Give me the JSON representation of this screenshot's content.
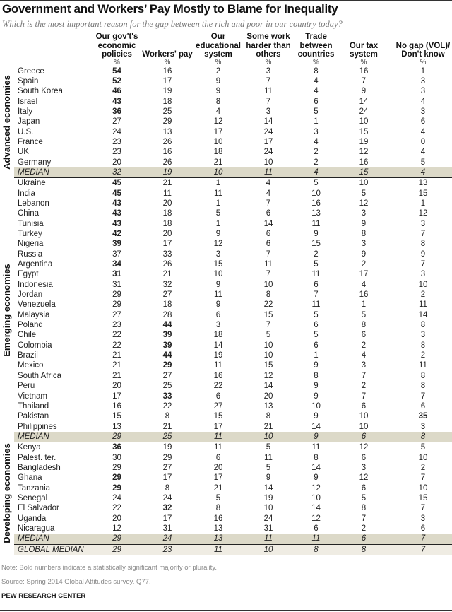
{
  "title": "Government and Workers’ Pay Mostly to Blame for Inequality",
  "subtitle": "Which is the most important reason for the gap between the rich and poor in our country today?",
  "columns": [
    "Our gov't's economic policies",
    "Workers' pay",
    "Our educational system",
    "Some work harder than others",
    "Trade between countries",
    "Our tax system",
    "No gap (VOL)/ Don't know"
  ],
  "unit": "%",
  "groups": [
    {
      "label": "Advanced economies",
      "rows": [
        {
          "name": "Greece",
          "values": [
            54,
            16,
            2,
            3,
            8,
            16,
            1
          ],
          "bold": [
            0
          ]
        },
        {
          "name": "Spain",
          "values": [
            52,
            17,
            9,
            7,
            4,
            7,
            3
          ],
          "bold": [
            0
          ]
        },
        {
          "name": "South Korea",
          "values": [
            46,
            19,
            9,
            11,
            4,
            9,
            3
          ],
          "bold": [
            0
          ]
        },
        {
          "name": "Israel",
          "values": [
            43,
            18,
            8,
            7,
            6,
            14,
            4
          ],
          "bold": [
            0
          ]
        },
        {
          "name": "Italy",
          "values": [
            36,
            25,
            4,
            3,
            5,
            24,
            3
          ],
          "bold": [
            0
          ]
        },
        {
          "name": "Japan",
          "values": [
            27,
            29,
            12,
            14,
            1,
            10,
            6
          ],
          "bold": []
        },
        {
          "name": "U.S.",
          "values": [
            24,
            13,
            17,
            24,
            3,
            15,
            4
          ],
          "bold": []
        },
        {
          "name": "France",
          "values": [
            23,
            26,
            10,
            17,
            4,
            19,
            0
          ],
          "bold": []
        },
        {
          "name": "UK",
          "values": [
            23,
            16,
            18,
            24,
            2,
            12,
            4
          ],
          "bold": []
        },
        {
          "name": "Germany",
          "values": [
            20,
            26,
            21,
            10,
            2,
            16,
            5
          ],
          "bold": []
        }
      ],
      "median": {
        "name": "MEDIAN",
        "values": [
          32,
          19,
          10,
          11,
          4,
          15,
          4
        ]
      }
    },
    {
      "label": "Emerging economies",
      "rows": [
        {
          "name": "Ukraine",
          "values": [
            45,
            21,
            1,
            4,
            5,
            10,
            13
          ],
          "bold": [
            0
          ]
        },
        {
          "name": "India",
          "values": [
            45,
            11,
            11,
            4,
            10,
            5,
            15
          ],
          "bold": [
            0
          ]
        },
        {
          "name": "Lebanon",
          "values": [
            43,
            20,
            1,
            7,
            16,
            12,
            1
          ],
          "bold": [
            0
          ]
        },
        {
          "name": "China",
          "values": [
            43,
            18,
            5,
            6,
            13,
            3,
            12
          ],
          "bold": [
            0
          ]
        },
        {
          "name": "Tunisia",
          "values": [
            43,
            18,
            1,
            14,
            11,
            9,
            3
          ],
          "bold": [
            0
          ]
        },
        {
          "name": "Turkey",
          "values": [
            42,
            20,
            9,
            6,
            9,
            8,
            7
          ],
          "bold": [
            0
          ]
        },
        {
          "name": "Nigeria",
          "values": [
            39,
            17,
            12,
            6,
            15,
            3,
            8
          ],
          "bold": [
            0
          ]
        },
        {
          "name": "Russia",
          "values": [
            37,
            33,
            3,
            7,
            2,
            9,
            9
          ],
          "bold": []
        },
        {
          "name": "Argentina",
          "values": [
            34,
            26,
            15,
            11,
            5,
            2,
            7
          ],
          "bold": [
            0
          ]
        },
        {
          "name": "Egypt",
          "values": [
            31,
            21,
            10,
            7,
            11,
            17,
            3
          ],
          "bold": [
            0
          ]
        },
        {
          "name": "Indonesia",
          "values": [
            31,
            32,
            9,
            10,
            6,
            4,
            10
          ],
          "bold": []
        },
        {
          "name": "Jordan",
          "values": [
            29,
            27,
            11,
            8,
            7,
            16,
            2
          ],
          "bold": []
        },
        {
          "name": "Venezuela",
          "values": [
            29,
            18,
            9,
            22,
            11,
            1,
            11
          ],
          "bold": []
        },
        {
          "name": "Malaysia",
          "values": [
            27,
            28,
            6,
            15,
            5,
            5,
            14
          ],
          "bold": []
        },
        {
          "name": "Poland",
          "values": [
            23,
            44,
            3,
            7,
            6,
            8,
            8
          ],
          "bold": [
            1
          ]
        },
        {
          "name": "Chile",
          "values": [
            22,
            39,
            18,
            5,
            5,
            6,
            3
          ],
          "bold": [
            1
          ]
        },
        {
          "name": "Colombia",
          "values": [
            22,
            39,
            14,
            10,
            6,
            2,
            8
          ],
          "bold": [
            1
          ]
        },
        {
          "name": "Brazil",
          "values": [
            21,
            44,
            19,
            10,
            1,
            4,
            2
          ],
          "bold": [
            1
          ]
        },
        {
          "name": "Mexico",
          "values": [
            21,
            29,
            11,
            15,
            9,
            3,
            11
          ],
          "bold": [
            1
          ]
        },
        {
          "name": "South Africa",
          "values": [
            21,
            27,
            16,
            12,
            8,
            7,
            8
          ],
          "bold": []
        },
        {
          "name": "Peru",
          "values": [
            20,
            25,
            22,
            14,
            9,
            2,
            8
          ],
          "bold": []
        },
        {
          "name": "Vietnam",
          "values": [
            17,
            33,
            6,
            20,
            9,
            7,
            7
          ],
          "bold": [
            1
          ]
        },
        {
          "name": "Thailand",
          "values": [
            16,
            22,
            27,
            13,
            10,
            6,
            6
          ],
          "bold": []
        },
        {
          "name": "Pakistan",
          "values": [
            15,
            8,
            15,
            8,
            9,
            10,
            35
          ],
          "bold": [
            6
          ]
        },
        {
          "name": "Philippines",
          "values": [
            13,
            21,
            17,
            21,
            14,
            10,
            3
          ],
          "bold": []
        }
      ],
      "median": {
        "name": "MEDIAN",
        "values": [
          29,
          25,
          11,
          10,
          9,
          6,
          8
        ]
      }
    },
    {
      "label": "Developing economies",
      "rows": [
        {
          "name": "Kenya",
          "values": [
            36,
            19,
            11,
            5,
            11,
            12,
            5
          ],
          "bold": [
            0
          ]
        },
        {
          "name": "Palest. ter.",
          "values": [
            30,
            29,
            6,
            11,
            8,
            6,
            10
          ],
          "bold": []
        },
        {
          "name": "Bangladesh",
          "values": [
            29,
            27,
            20,
            5,
            14,
            3,
            2
          ],
          "bold": []
        },
        {
          "name": "Ghana",
          "values": [
            29,
            17,
            17,
            9,
            9,
            12,
            7
          ],
          "bold": [
            0
          ]
        },
        {
          "name": "Tanzania",
          "values": [
            29,
            8,
            21,
            14,
            12,
            6,
            10
          ],
          "bold": [
            0
          ]
        },
        {
          "name": "Senegal",
          "values": [
            24,
            24,
            5,
            19,
            10,
            5,
            15
          ],
          "bold": []
        },
        {
          "name": "El Salvador",
          "values": [
            22,
            32,
            8,
            10,
            14,
            8,
            7
          ],
          "bold": [
            1
          ]
        },
        {
          "name": "Uganda",
          "values": [
            20,
            17,
            16,
            24,
            12,
            7,
            3
          ],
          "bold": []
        },
        {
          "name": "Nicaragua",
          "values": [
            12,
            31,
            13,
            31,
            6,
            2,
            6
          ],
          "bold": []
        }
      ],
      "median": {
        "name": "MEDIAN",
        "values": [
          29,
          24,
          13,
          11,
          11,
          6,
          7
        ]
      }
    }
  ],
  "global_median": {
    "name": "GLOBAL MEDIAN",
    "values": [
      29,
      23,
      11,
      10,
      8,
      8,
      7
    ]
  },
  "note": "Note: Bold numbers indicate a statistically significant majority or plurality.",
  "source": "Source: Spring 2014 Global Attitudes survey. Q77.",
  "brand": "PEW RESEARCH CENTER",
  "colors": {
    "median_shade": "#dcd9c8",
    "global_median_shade": "#efece3",
    "subtitle": "#777777"
  }
}
